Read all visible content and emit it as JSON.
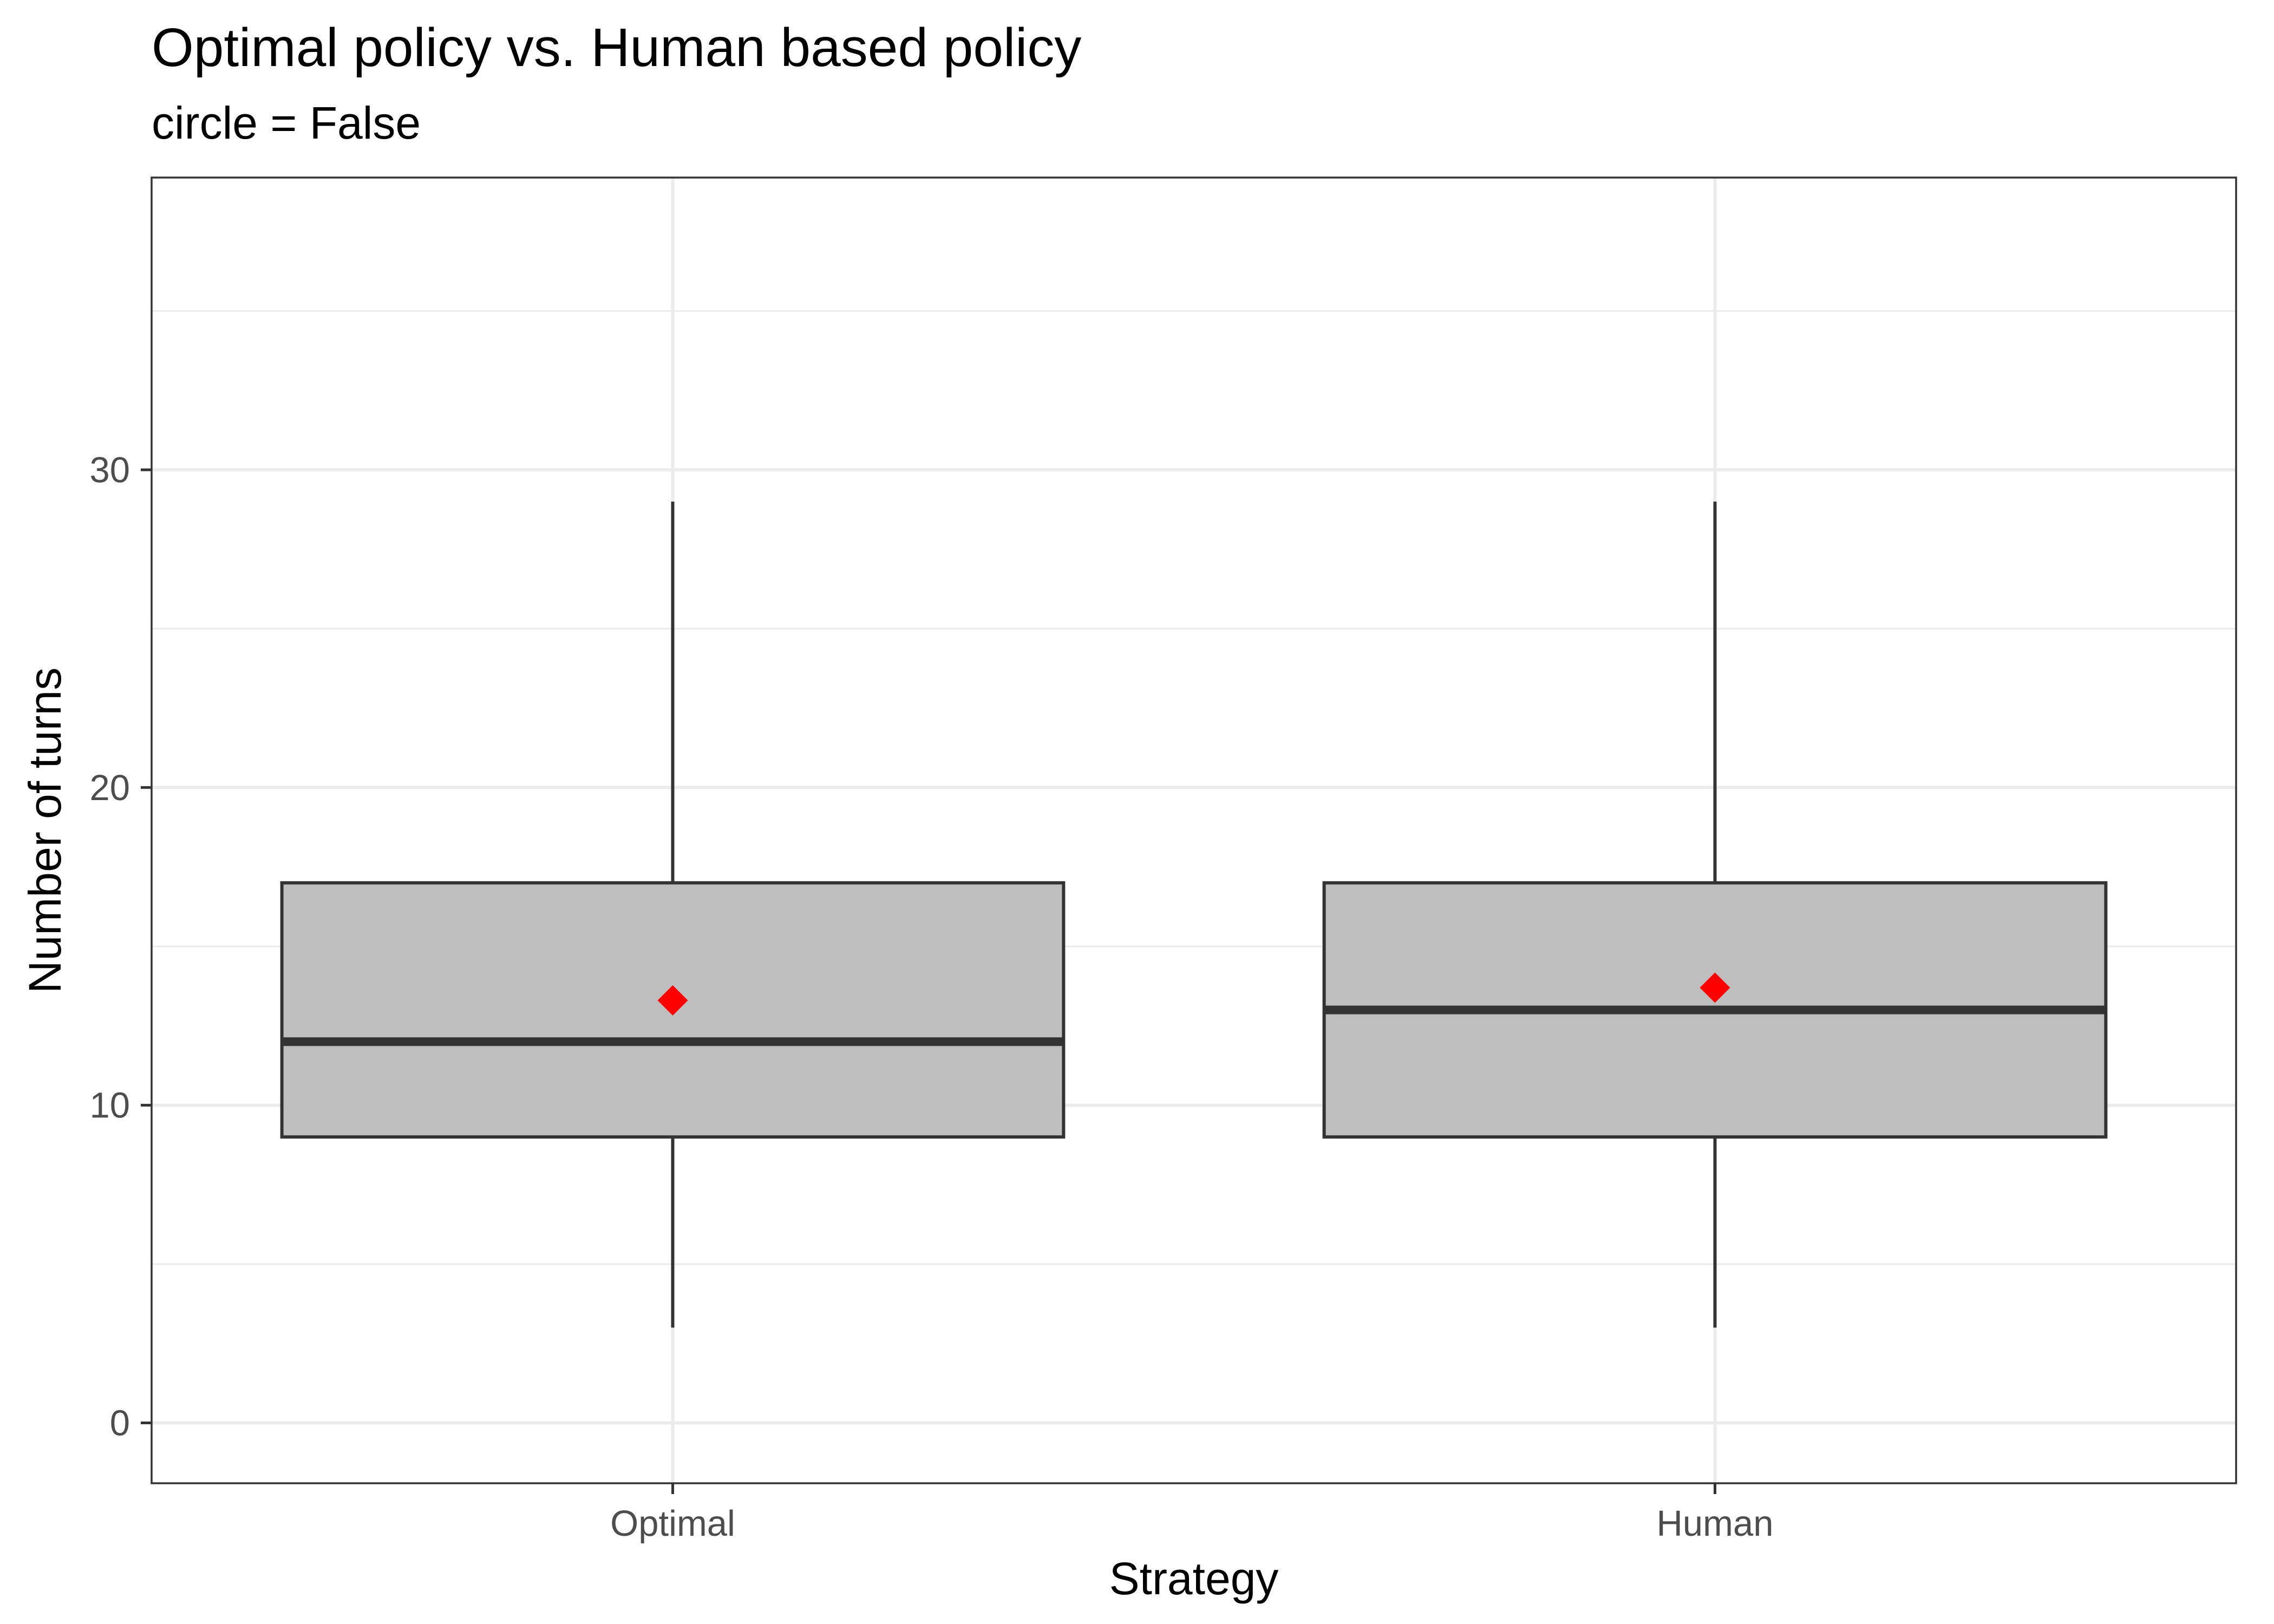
{
  "chart_data": {
    "type": "box",
    "title": "Optimal policy vs. Human based policy",
    "subtitle": "circle = False",
    "xlabel": "Strategy",
    "ylabel": "Number of turns",
    "categories": [
      "Optimal",
      "Human"
    ],
    "boxes": [
      {
        "category": "Optimal",
        "whisker_low": 3,
        "q1": 9,
        "median": 12,
        "q3": 17,
        "whisker_high": 29,
        "mean": 13.3
      },
      {
        "category": "Human",
        "whisker_low": 3,
        "q1": 9,
        "median": 13,
        "q3": 17,
        "whisker_high": 29,
        "mean": 13.7
      }
    ],
    "ylim": [
      -1.9,
      39.2
    ],
    "yticks": [
      0,
      10,
      20,
      30
    ],
    "minor_yticks": [
      5,
      15,
      25,
      35
    ],
    "grid": true,
    "box_fill": "#bebebe",
    "box_stroke": "#333333",
    "mean_marker": {
      "shape": "diamond",
      "color": "#ff0000"
    }
  }
}
